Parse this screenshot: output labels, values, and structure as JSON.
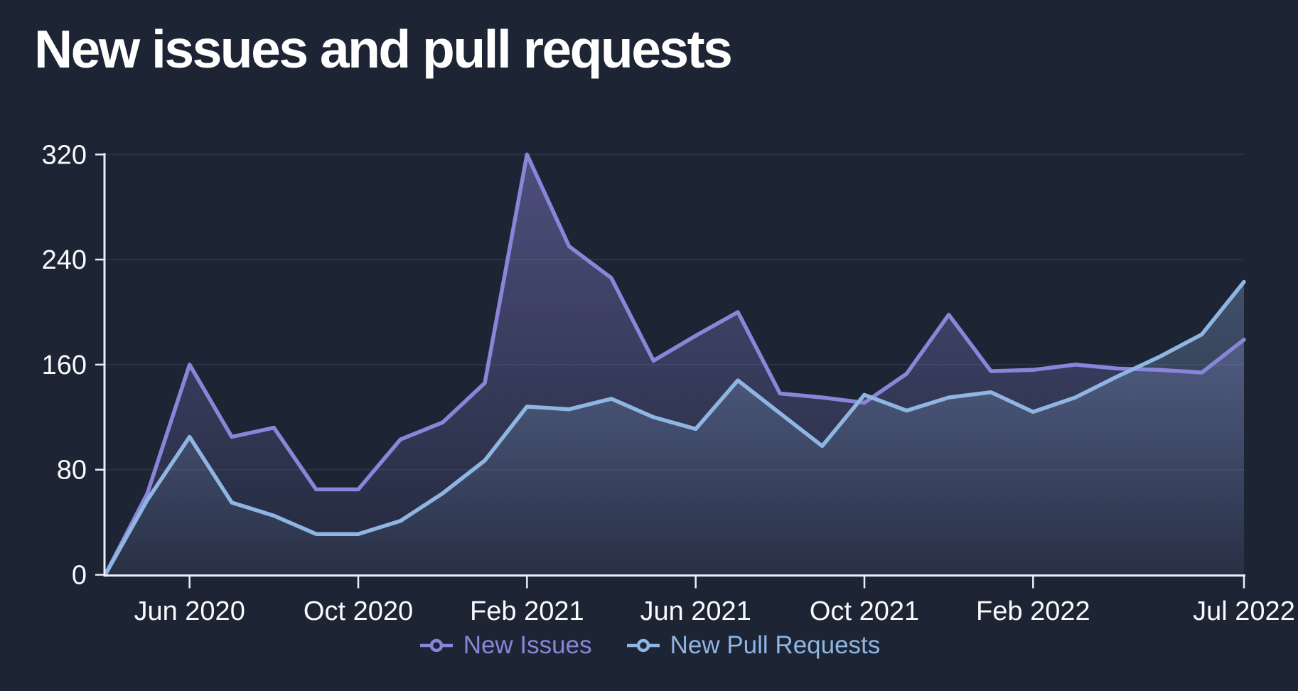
{
  "title": "New issues and pull requests",
  "colors": {
    "background": "#1d2434",
    "axis": "#eceff5",
    "tick_text": "#f8fafc",
    "gridline": "rgba(150,170,210,0.13)",
    "issues": "#8a85d8",
    "pull_requests": "#8fb5e2"
  },
  "legend": {
    "items": [
      {
        "label": "New Issues",
        "color": "#8a85d8",
        "marker": "line-circle-marker"
      },
      {
        "label": "New Pull Requests",
        "color": "#8fb5e2",
        "marker": "line-circle-marker"
      }
    ]
  },
  "chart_data": {
    "type": "area",
    "title": "New issues and pull requests",
    "xlabel": "",
    "ylabel": "",
    "ylim": [
      0,
      320
    ],
    "y_ticks": [
      0,
      80,
      160,
      240,
      320
    ],
    "grid": true,
    "legend_position": "bottom",
    "x": [
      "Apr 2020",
      "May 2020",
      "Jun 2020",
      "Jul 2020",
      "Aug 2020",
      "Sep 2020",
      "Oct 2020",
      "Nov 2020",
      "Dec 2020",
      "Jan 2021",
      "Feb 2021",
      "Mar 2021",
      "Apr 2021",
      "May 2021",
      "Jun 2021",
      "Jul 2021",
      "Aug 2021",
      "Sep 2021",
      "Oct 2021",
      "Nov 2021",
      "Dec 2021",
      "Jan 2022",
      "Feb 2022",
      "Mar 2022",
      "Apr 2022",
      "May 2022",
      "Jun 2022",
      "Jul 2022"
    ],
    "x_tick_indices": [
      2,
      6,
      10,
      14,
      18,
      22,
      27
    ],
    "x_tick_labels": [
      "Jun 2020",
      "Oct 2020",
      "Feb 2021",
      "Jun 2021",
      "Oct 2021",
      "Feb 2022",
      "Jul 2022"
    ],
    "series": [
      {
        "name": "New Issues",
        "color": "#8a85d8",
        "values": [
          0,
          62,
          160,
          105,
          112,
          65,
          65,
          103,
          116,
          146,
          320,
          250,
          226,
          163,
          182,
          200,
          138,
          135,
          131,
          153,
          198,
          155,
          156,
          160,
          157,
          156,
          154,
          179
        ]
      },
      {
        "name": "New Pull Requests",
        "color": "#8fb5e2",
        "values": [
          0,
          57,
          105,
          55,
          45,
          31,
          31,
          41,
          62,
          87,
          128,
          126,
          134,
          120,
          111,
          148,
          123,
          98,
          137,
          125,
          135,
          139,
          124,
          135,
          151,
          166,
          183,
          223
        ]
      }
    ]
  }
}
